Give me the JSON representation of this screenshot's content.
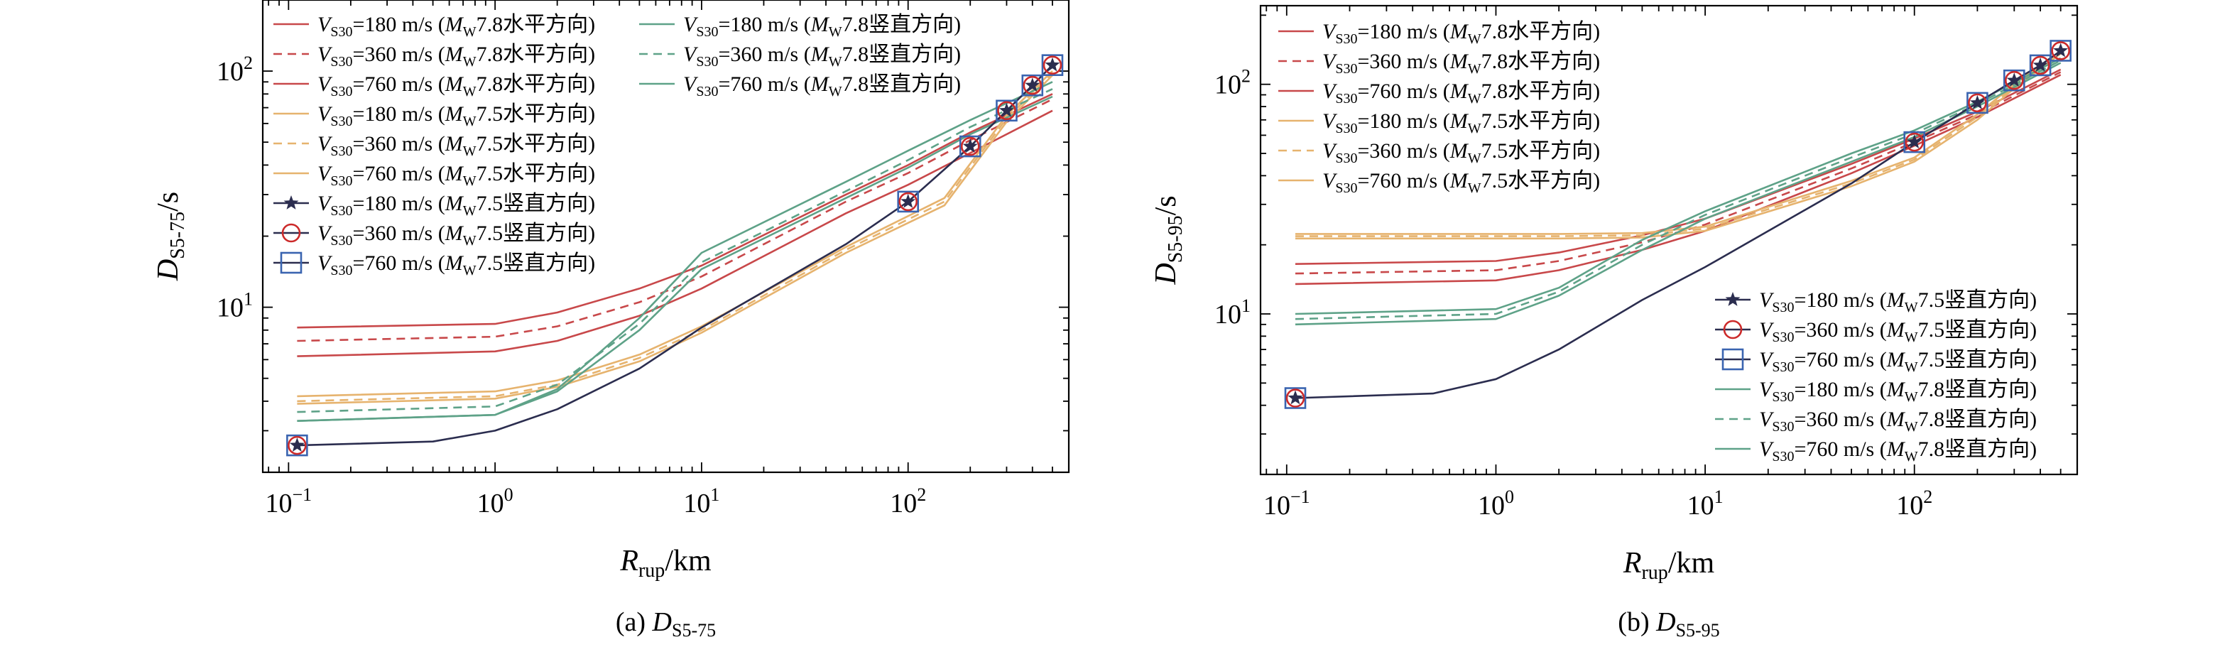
{
  "colors": {
    "red": "#c8484a",
    "orange": "#e6b36e",
    "green": "#5ea288",
    "navy": "#2b2d4f",
    "marker_red": "#cc2a2a",
    "marker_blue": "#3a64b0"
  },
  "series_labels": {
    "h78_180": {
      "v": "V",
      "sub": "S30",
      "rest": "=180 m/s (",
      "m": "M",
      "msub": "W",
      "tail": "7.8水平方向)"
    },
    "h78_360": {
      "v": "V",
      "sub": "S30",
      "rest": "=360 m/s (",
      "m": "M",
      "msub": "W",
      "tail": "7.8水平方向)"
    },
    "h78_760": {
      "v": "V",
      "sub": "S30",
      "rest": "=760 m/s (",
      "m": "M",
      "msub": "W",
      "tail": "7.8水平方向)"
    },
    "h75_180": {
      "v": "V",
      "sub": "S30",
      "rest": "=180 m/s (",
      "m": "M",
      "msub": "W",
      "tail": "7.5水平方向)"
    },
    "h75_360": {
      "v": "V",
      "sub": "S30",
      "rest": "=360 m/s (",
      "m": "M",
      "msub": "W",
      "tail": "7.5水平方向)"
    },
    "h75_760": {
      "v": "V",
      "sub": "S30",
      "rest": "=760 m/s (",
      "m": "M",
      "msub": "W",
      "tail": "7.5水平方向)"
    },
    "v75_180": {
      "v": "V",
      "sub": "S30",
      "rest": "=180 m/s (",
      "m": "M",
      "msub": "W",
      "tail": "7.5竖直方向)"
    },
    "v75_360": {
      "v": "V",
      "sub": "S30",
      "rest": "=360 m/s (",
      "m": "M",
      "msub": "W",
      "tail": "7.5竖直方向)"
    },
    "v75_760": {
      "v": "V",
      "sub": "S30",
      "rest": "=760 m/s (",
      "m": "M",
      "msub": "W",
      "tail": "7.5竖直方向)"
    },
    "v78_180": {
      "v": "V",
      "sub": "S30",
      "rest": "=180 m/s (",
      "m": "M",
      "msub": "W",
      "tail": "7.8竖直方向)"
    },
    "v78_360": {
      "v": "V",
      "sub": "S30",
      "rest": "=360 m/s (",
      "m": "M",
      "msub": "W",
      "tail": "7.8竖直方向)"
    },
    "v78_760": {
      "v": "V",
      "sub": "S30",
      "rest": "=760 m/s (",
      "m": "M",
      "msub": "W",
      "tail": "7.8竖直方向)"
    }
  },
  "chart_data": [
    {
      "type": "line",
      "panel_label": {
        "prefix": "(a) ",
        "d": "D",
        "sub": "S5-75"
      },
      "xlabel": {
        "main": "R",
        "sub": "rup",
        "unit": "/km"
      },
      "ylabel": {
        "main": "D",
        "sub": "S5-75",
        "unit": "/s"
      },
      "xscale": "log",
      "yscale": "log",
      "xlim": [
        0.075,
        600
      ],
      "ylim": [
        2.0,
        200
      ],
      "xticks": [
        {
          "base": "10",
          "exp": "−1"
        },
        {
          "base": "10",
          "exp": "0"
        },
        {
          "base": "10",
          "exp": "1"
        },
        {
          "base": "10",
          "exp": "2"
        }
      ],
      "yticks": [
        {
          "base": "10",
          "exp": "1"
        },
        {
          "base": "10",
          "exp": "2"
        }
      ],
      "grid": false,
      "legend": [
        {
          "position": "upper-left column 1",
          "keys": [
            "h78_180",
            "h78_360",
            "h78_760",
            "h75_180",
            "h75_360",
            "h75_760",
            "v75_180",
            "v75_360",
            "v75_760"
          ]
        },
        {
          "position": "upper-left column 2",
          "keys": [
            "v78_180",
            "v78_360",
            "v78_760"
          ]
        }
      ],
      "series": [
        {
          "key": "h78_180",
          "color": "red",
          "dash": "solid",
          "x": [
            0.11,
            1,
            2,
            5,
            10,
            50,
            100,
            200,
            500
          ],
          "y": [
            8.2,
            8.5,
            9.5,
            12,
            15,
            30,
            40,
            55,
            80
          ]
        },
        {
          "key": "h78_360",
          "color": "red",
          "dash": "dashed",
          "x": [
            0.11,
            1,
            2,
            5,
            10,
            50,
            100,
            200,
            500
          ],
          "y": [
            7.2,
            7.5,
            8.3,
            10.5,
            13.5,
            28,
            37,
            51,
            76
          ]
        },
        {
          "key": "h78_760",
          "color": "red",
          "dash": "solid",
          "x": [
            0.11,
            1,
            2,
            5,
            10,
            50,
            100,
            200,
            500
          ],
          "y": [
            6.2,
            6.5,
            7.2,
            9.2,
            12,
            25,
            33,
            45,
            68
          ]
        },
        {
          "key": "h75_180",
          "color": "orange",
          "dash": "solid",
          "x": [
            0.11,
            1,
            2,
            5,
            10,
            50,
            150,
            300,
            500
          ],
          "y": [
            4.2,
            4.4,
            4.9,
            6.3,
            8.3,
            18,
            29,
            65,
            100
          ]
        },
        {
          "key": "h75_360",
          "color": "orange",
          "dash": "dashed",
          "x": [
            0.11,
            1,
            2,
            5,
            10,
            50,
            150,
            300,
            500
          ],
          "y": [
            4.0,
            4.2,
            4.7,
            6.1,
            8.0,
            17.5,
            28,
            63,
            98
          ]
        },
        {
          "key": "h75_760",
          "color": "orange",
          "dash": "solid",
          "x": [
            0.11,
            1,
            2,
            5,
            10,
            50,
            150,
            300,
            500
          ],
          "y": [
            3.9,
            4.1,
            4.6,
            5.9,
            7.8,
            17,
            27,
            61,
            96
          ]
        },
        {
          "key": "v78_180",
          "color": "green",
          "dash": "solid",
          "x": [
            0.11,
            1,
            2,
            5,
            10,
            50,
            100,
            200,
            500
          ],
          "y": [
            3.3,
            3.5,
            4.5,
            9,
            17,
            34,
            46,
            62,
            90
          ]
        },
        {
          "key": "v78_360",
          "color": "green",
          "dash": "dashed",
          "x": [
            0.11,
            1,
            2,
            5,
            10,
            50,
            100,
            200,
            500
          ],
          "y": [
            3.6,
            3.8,
            4.7,
            8.5,
            15.5,
            31,
            42,
            58,
            84
          ]
        },
        {
          "key": "v78_760",
          "color": "green",
          "dash": "solid",
          "x": [
            0.11,
            1,
            2,
            5,
            10,
            50,
            100,
            200,
            500
          ],
          "y": [
            3.3,
            3.5,
            4.4,
            8,
            14.5,
            29,
            39,
            54,
            78
          ]
        },
        {
          "key": "v75_180",
          "color": "navy",
          "dash": "solid",
          "marker": "star",
          "x": [
            0.11,
            0.5,
            1,
            2,
            5,
            10,
            50,
            100,
            200,
            300,
            400,
            500
          ],
          "y": [
            2.6,
            2.7,
            3.0,
            3.7,
            5.5,
            8.2,
            18.5,
            28,
            48,
            68,
            87,
            106
          ],
          "marker_x": [
            0.11,
            100,
            200,
            300,
            400,
            500
          ],
          "marker_y": [
            2.6,
            28,
            48,
            68,
            87,
            106
          ]
        },
        {
          "key": "v75_360",
          "color": "marker_red",
          "dash": "none",
          "marker": "circle",
          "x": [
            0.11,
            100,
            200,
            300,
            400,
            500
          ],
          "y": [
            2.6,
            28,
            48,
            68,
            87,
            106
          ]
        },
        {
          "key": "v75_760",
          "color": "marker_blue",
          "dash": "none",
          "marker": "square",
          "x": [
            0.11,
            100,
            200,
            300,
            400,
            500
          ],
          "y": [
            2.6,
            28,
            48,
            68,
            87,
            106
          ]
        }
      ]
    },
    {
      "type": "line",
      "panel_label": {
        "prefix": "(b) ",
        "d": "D",
        "sub": "S5-95"
      },
      "xlabel": {
        "main": "R",
        "sub": "rup",
        "unit": "/km"
      },
      "ylabel": {
        "main": "D",
        "sub": "S5-95",
        "unit": "/s"
      },
      "xscale": "log",
      "yscale": "log",
      "xlim": [
        0.075,
        600
      ],
      "ylim": [
        2.0,
        220
      ],
      "xticks": [
        {
          "base": "10",
          "exp": "−1"
        },
        {
          "base": "10",
          "exp": "0"
        },
        {
          "base": "10",
          "exp": "1"
        },
        {
          "base": "10",
          "exp": "2"
        }
      ],
      "yticks": [
        {
          "base": "10",
          "exp": "1"
        },
        {
          "base": "10",
          "exp": "2"
        }
      ],
      "grid": false,
      "legend": [
        {
          "position": "upper-left",
          "keys": [
            "h78_180",
            "h78_360",
            "h78_760",
            "h75_180",
            "h75_360",
            "h75_760"
          ]
        },
        {
          "position": "lower-right",
          "keys": [
            "v75_180",
            "v75_360",
            "v75_760",
            "v78_180",
            "v78_360",
            "v78_760"
          ]
        }
      ],
      "series": [
        {
          "key": "h78_180",
          "color": "red",
          "dash": "solid",
          "x": [
            0.11,
            1,
            2,
            5,
            10,
            50,
            100,
            200,
            500
          ],
          "y": [
            16.5,
            17,
            18.5,
            22,
            26,
            45,
            58,
            76,
            116
          ]
        },
        {
          "key": "h78_360",
          "color": "red",
          "dash": "dashed",
          "x": [
            0.11,
            1,
            2,
            5,
            10,
            50,
            100,
            200,
            500
          ],
          "y": [
            15,
            15.5,
            17,
            20.5,
            24.5,
            43,
            56,
            74,
            113
          ]
        },
        {
          "key": "h78_760",
          "color": "red",
          "dash": "solid",
          "x": [
            0.11,
            1,
            2,
            5,
            10,
            50,
            100,
            200,
            500
          ],
          "y": [
            13.5,
            14,
            15.5,
            19,
            23,
            41,
            54,
            72,
            110
          ]
        },
        {
          "key": "h75_180",
          "color": "orange",
          "dash": "solid",
          "x": [
            0.11,
            1,
            2,
            5,
            10,
            50,
            100,
            200,
            300,
            500
          ],
          "y": [
            22.3,
            22.3,
            22.3,
            22.5,
            24,
            38,
            48,
            74,
            100,
            140
          ]
        },
        {
          "key": "h75_360",
          "color": "orange",
          "dash": "dashed",
          "x": [
            0.11,
            1,
            2,
            5,
            10,
            50,
            100,
            200,
            300,
            500
          ],
          "y": [
            21.8,
            21.8,
            21.8,
            22,
            23.5,
            37,
            47,
            72,
            98,
            138
          ]
        },
        {
          "key": "h75_760",
          "color": "orange",
          "dash": "solid",
          "x": [
            0.11,
            1,
            2,
            5,
            10,
            50,
            100,
            200,
            300,
            500
          ],
          "y": [
            21.3,
            21.3,
            21.3,
            21.5,
            23,
            36,
            46,
            70,
            96,
            136
          ]
        },
        {
          "key": "v78_180",
          "color": "green",
          "dash": "solid",
          "x": [
            0.11,
            1,
            2,
            5,
            10,
            50,
            100,
            200,
            500
          ],
          "y": [
            10,
            10.5,
            13,
            21,
            28,
            50,
            63,
            84,
            130
          ]
        },
        {
          "key": "v78_360",
          "color": "green",
          "dash": "dashed",
          "x": [
            0.11,
            1,
            2,
            5,
            10,
            50,
            100,
            200,
            500
          ],
          "y": [
            9.5,
            10,
            12.5,
            20,
            27,
            48,
            61,
            82,
            127
          ]
        },
        {
          "key": "v78_760",
          "color": "green",
          "dash": "solid",
          "x": [
            0.11,
            1,
            2,
            5,
            10,
            50,
            100,
            200,
            500
          ],
          "y": [
            9,
            9.5,
            12,
            19,
            26,
            46,
            59,
            80,
            124
          ]
        },
        {
          "key": "v75_180",
          "color": "navy",
          "dash": "solid",
          "marker": "star",
          "x": [
            0.11,
            0.5,
            1,
            2,
            5,
            10,
            50,
            100,
            200,
            300,
            400,
            500
          ],
          "y": [
            4.3,
            4.5,
            5.2,
            7.0,
            11.5,
            16,
            37,
            56,
            83,
            104,
            121,
            140
          ],
          "marker_x": [
            0.11,
            100,
            200,
            300,
            400,
            500
          ],
          "marker_y": [
            4.3,
            56,
            83,
            104,
            121,
            140
          ]
        },
        {
          "key": "v75_360",
          "color": "marker_red",
          "dash": "none",
          "marker": "circle",
          "x": [
            0.11,
            100,
            200,
            300,
            400,
            500
          ],
          "y": [
            4.3,
            56,
            83,
            104,
            121,
            140
          ]
        },
        {
          "key": "v75_760",
          "color": "marker_blue",
          "dash": "none",
          "marker": "square",
          "x": [
            0.11,
            100,
            200,
            300,
            400,
            500
          ],
          "y": [
            4.3,
            56,
            83,
            104,
            121,
            140
          ]
        }
      ]
    }
  ]
}
